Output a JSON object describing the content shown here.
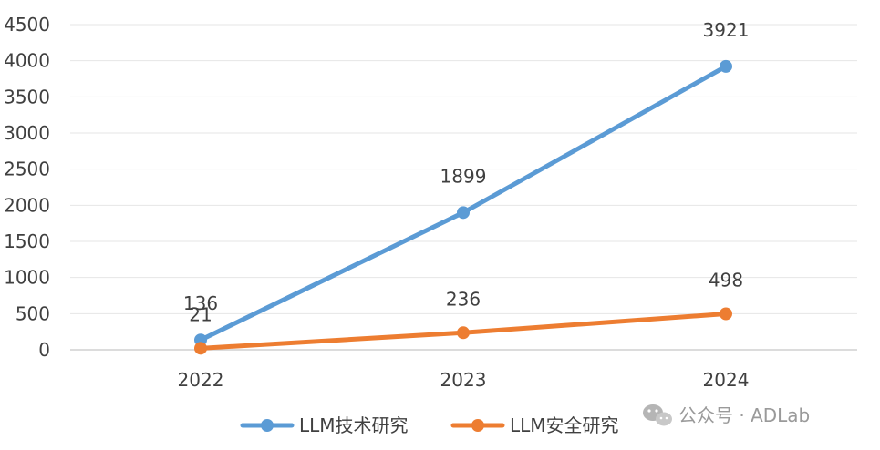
{
  "chart_data": {
    "type": "line",
    "categories": [
      "2022",
      "2023",
      "2024"
    ],
    "series": [
      {
        "name": "LLM技术研究",
        "values": [
          136,
          1899,
          3921
        ],
        "color": "#5b9bd5"
      },
      {
        "name": "LLM安全研究",
        "values": [
          21,
          236,
          498
        ],
        "color": "#ed7d31"
      }
    ],
    "ylim": [
      0,
      4500
    ],
    "yticks": [
      0,
      500,
      1000,
      1500,
      2000,
      2500,
      3000,
      3500,
      4000,
      4500
    ],
    "grid": "horizontal",
    "legend_placement": "bottom-center",
    "data_labels": true
  },
  "watermark": {
    "text": "公众号 · ADLab",
    "icon": "wechat-icon"
  }
}
